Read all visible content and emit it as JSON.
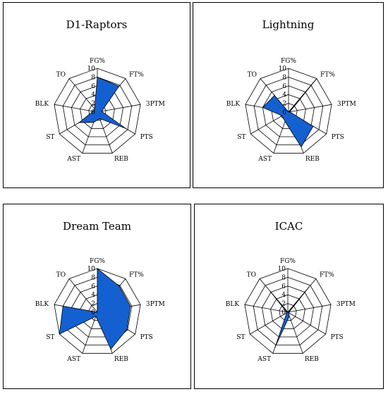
{
  "colors": {
    "fill": "#1560d0",
    "stroke": "#000000",
    "background": "#ffffff"
  },
  "chart_data": [
    {
      "type": "radar",
      "title": "D1-Raptors",
      "axes": [
        "FG%",
        "FT%",
        "3PTM",
        "PTS",
        "REB",
        "AST",
        "ST",
        "BLK",
        "TO"
      ],
      "ticks": [
        "0",
        "2",
        "4",
        "6",
        "8",
        "10"
      ],
      "rlim": [
        0,
        10
      ],
      "values": [
        8.0,
        7.7,
        1.0,
        7.5,
        1.6,
        2.5,
        4.8,
        1.0,
        1.0
      ]
    },
    {
      "type": "radar",
      "title": "Lightning",
      "axes": [
        "FG%",
        "FT%",
        "3PTM",
        "PTS",
        "REB",
        "AST",
        "ST",
        "BLK",
        "TO"
      ],
      "ticks": [
        "0",
        "2",
        "4",
        "6",
        "8",
        "10"
      ],
      "rlim": [
        0,
        10
      ],
      "values": [
        0.0,
        10.0,
        0.3,
        6.5,
        8.5,
        2.3,
        1.7,
        6.0,
        5.0
      ]
    },
    {
      "type": "radar",
      "title": "Dream Team",
      "axes": [
        "FG%",
        "FT%",
        "3PTM",
        "PTS",
        "REB",
        "AST",
        "ST",
        "BLK",
        "TO"
      ],
      "ticks": [
        "0",
        "2",
        "4",
        "6",
        "8",
        "10"
      ],
      "rlim": [
        0,
        10
      ],
      "values": [
        10.0,
        7.8,
        7.7,
        7.8,
        9.0,
        1.0,
        10.0,
        8.0,
        0.0
      ]
    },
    {
      "type": "radar",
      "title": "ICAC",
      "axes": [
        "FG%",
        "FT%",
        "3PTM",
        "PTS",
        "REB",
        "AST",
        "ST",
        "BLK",
        "TO"
      ],
      "ticks": [
        "0",
        "2",
        "4",
        "6",
        "8",
        "10"
      ],
      "rlim": [
        0,
        10
      ],
      "values": [
        0.0,
        7.5,
        0.3,
        0.3,
        1.0,
        8.5,
        0.3,
        0.3,
        6.2
      ]
    }
  ]
}
